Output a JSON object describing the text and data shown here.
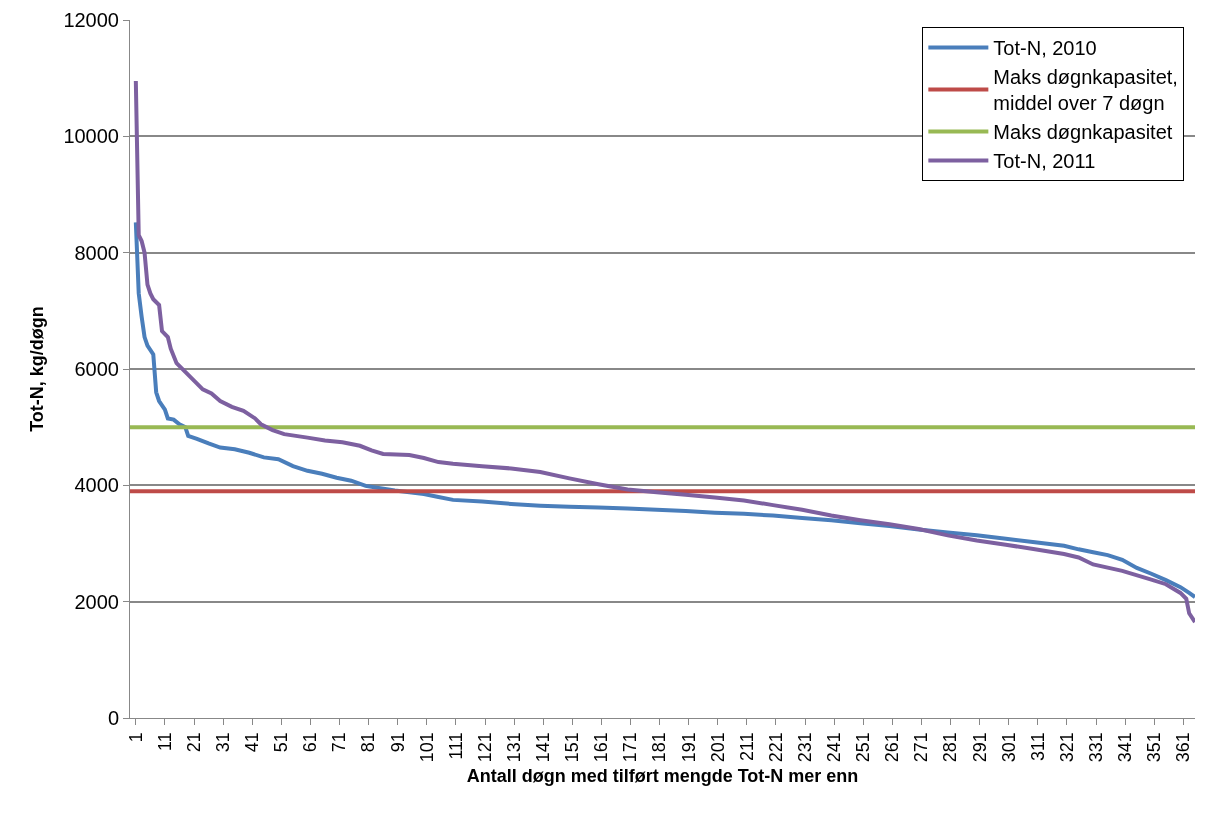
{
  "chart_data": {
    "type": "line",
    "xlabel": "Antall døgn med tilført mengde Tot-N mer enn",
    "ylabel": "Tot-N, kg/døgn",
    "xlim": [
      -1,
      365
    ],
    "xticks": [
      1,
      11,
      21,
      31,
      41,
      51,
      61,
      71,
      81,
      91,
      101,
      111,
      121,
      131,
      141,
      151,
      161,
      171,
      181,
      191,
      201,
      211,
      221,
      231,
      241,
      251,
      261,
      271,
      281,
      291,
      301,
      311,
      321,
      331,
      341,
      351,
      361
    ],
    "ylim": [
      0,
      12000
    ],
    "yticks": [
      0,
      2000,
      4000,
      6000,
      8000,
      10000,
      12000
    ],
    "grid": "y",
    "legend": "top right",
    "marker": "none",
    "line_style": "solid",
    "series": [
      {
        "name": "Tot-N, 2010",
        "color": "#4a7ebb",
        "x": [
          1,
          2,
          3,
          4,
          5,
          7,
          8,
          9,
          11,
          12,
          14,
          16,
          18,
          19,
          22,
          26,
          30,
          35,
          40,
          45,
          50,
          55,
          60,
          65,
          70,
          75,
          80,
          85,
          90,
          95,
          100,
          105,
          110,
          120,
          130,
          140,
          150,
          160,
          170,
          180,
          190,
          200,
          210,
          220,
          230,
          240,
          250,
          260,
          270,
          280,
          290,
          300,
          310,
          320,
          325,
          330,
          335,
          340,
          345,
          350,
          355,
          360,
          363,
          365
        ],
        "values": [
          8520,
          7300,
          6900,
          6550,
          6400,
          6250,
          5600,
          5450,
          5300,
          5150,
          5130,
          5050,
          5000,
          4850,
          4800,
          4720,
          4650,
          4620,
          4560,
          4480,
          4450,
          4330,
          4250,
          4200,
          4130,
          4080,
          3990,
          3950,
          3910,
          3880,
          3850,
          3800,
          3750,
          3720,
          3680,
          3650,
          3630,
          3620,
          3600,
          3580,
          3560,
          3530,
          3510,
          3480,
          3440,
          3400,
          3350,
          3300,
          3240,
          3190,
          3140,
          3080,
          3020,
          2960,
          2900,
          2850,
          2800,
          2720,
          2580,
          2480,
          2370,
          2250,
          2150,
          2080
        ]
      },
      {
        "name": "Maks døgnkapasitet,\nmiddel over 7 døgn",
        "color": "#be4b48",
        "x": [
          -1,
          365
        ],
        "values": [
          3900,
          3900
        ]
      },
      {
        "name": "Maks døgnkapasitet",
        "color": "#98b954",
        "x": [
          -1,
          365
        ],
        "values": [
          5000,
          5000
        ]
      },
      {
        "name": "Tot-N, 2011",
        "color": "#7d60a0",
        "x": [
          1,
          2,
          3,
          4,
          5,
          6,
          7,
          9,
          10,
          12,
          13,
          15,
          18,
          21,
          24,
          27,
          30,
          34,
          38,
          42,
          44,
          48,
          52,
          56,
          60,
          66,
          72,
          78,
          82,
          86,
          95,
          100,
          105,
          110,
          120,
          130,
          140,
          150,
          160,
          170,
          180,
          190,
          200,
          210,
          220,
          230,
          240,
          250,
          260,
          270,
          280,
          290,
          300,
          310,
          320,
          325,
          330,
          340,
          350,
          355,
          360,
          362,
          363,
          365
        ],
        "values": [
          10950,
          8300,
          8200,
          8000,
          7450,
          7300,
          7200,
          7100,
          6650,
          6550,
          6350,
          6100,
          5950,
          5800,
          5650,
          5580,
          5450,
          5350,
          5280,
          5150,
          5050,
          4950,
          4880,
          4850,
          4820,
          4770,
          4740,
          4680,
          4600,
          4540,
          4520,
          4470,
          4400,
          4370,
          4330,
          4290,
          4230,
          4120,
          4020,
          3930,
          3880,
          3840,
          3790,
          3740,
          3660,
          3580,
          3480,
          3400,
          3330,
          3250,
          3140,
          3050,
          2980,
          2900,
          2820,
          2760,
          2640,
          2530,
          2380,
          2300,
          2150,
          2050,
          1800,
          1650
        ]
      }
    ]
  }
}
